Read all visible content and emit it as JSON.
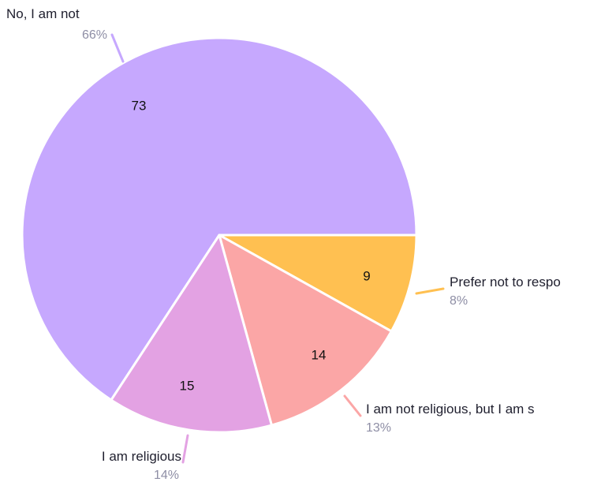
{
  "chart_data": {
    "type": "pie",
    "title": "",
    "slices": [
      {
        "label": "No, I am not",
        "value": 73,
        "percent": "66%",
        "color": "#c6a8fe"
      },
      {
        "label": "Prefer not to respo",
        "value": 9,
        "percent": "8%",
        "color": "#ffc051"
      },
      {
        "label": "I am not religious, but I am s",
        "value": 14,
        "percent": "13%",
        "color": "#fba6a6"
      },
      {
        "label": "I am religious",
        "value": 15,
        "percent": "14%",
        "color": "#e3a2e3"
      }
    ],
    "start_direction": "east",
    "direction": "counterclockwise-from-east-for-first-slice",
    "legend": "none"
  }
}
